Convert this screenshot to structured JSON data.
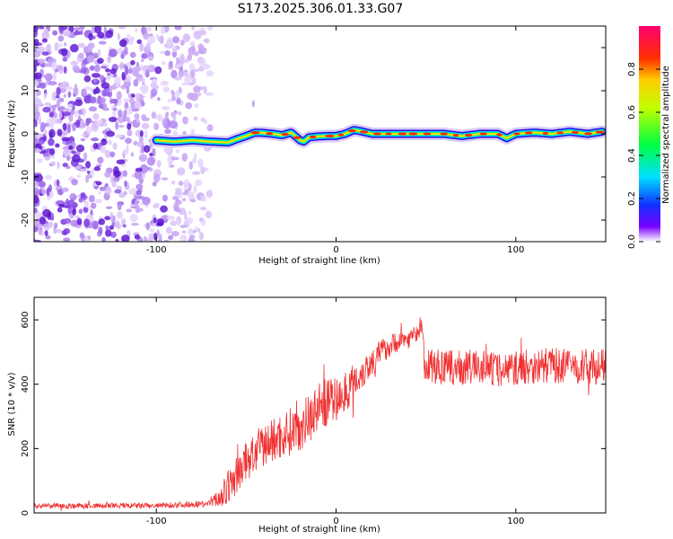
{
  "title": "S173.2025.306.01.33.G07",
  "chart_data": [
    {
      "type": "heatmap",
      "name": "spectrogram",
      "xlabel": "Height of straight line (km)",
      "ylabel": "Frequency (Hz)",
      "xlim": [
        -168,
        150
      ],
      "ylim": [
        -25,
        25
      ],
      "xticks": [
        -100,
        0,
        100
      ],
      "yticks": [
        -20,
        -10,
        0,
        10,
        20
      ],
      "xtick_labels": [
        "-100",
        "0",
        "100"
      ],
      "ytick_labels": [
        "-20",
        "-10",
        "0",
        "10",
        "20"
      ],
      "ridge": {
        "x": [
          -100,
          -90,
          -80,
          -70,
          -60,
          -55,
          -50,
          -45,
          -40,
          -35,
          -30,
          -25,
          -20,
          -18,
          -15,
          -10,
          -5,
          0,
          5,
          10,
          15,
          20,
          30,
          40,
          50,
          60,
          70,
          80,
          90,
          95,
          100,
          110,
          120,
          130,
          140,
          148
        ],
        "y": [
          -1.5,
          -1.8,
          -1.5,
          -1.8,
          -2.0,
          -1.2,
          -0.5,
          0.3,
          0.2,
          0.0,
          -0.3,
          0.3,
          -1.5,
          -1.8,
          -0.8,
          -0.6,
          -0.5,
          -0.5,
          0.0,
          0.9,
          0.5,
          0.0,
          0.0,
          0.0,
          0.0,
          0.0,
          -0.5,
          0.0,
          0.0,
          -1.0,
          0.0,
          0.3,
          0.0,
          0.5,
          0.0,
          0.5
        ]
      },
      "noise_region": [
        -168,
        -70
      ],
      "colorbar": {
        "label": "Normalized spectral amplitude",
        "range": [
          0,
          1
        ],
        "ticks": [
          0.0,
          0.2,
          0.4,
          0.6,
          0.8
        ],
        "tick_labels": [
          "0.0",
          "0.2",
          "0.4",
          "0.6",
          "0.8"
        ]
      }
    },
    {
      "type": "line",
      "name": "snr",
      "xlabel": "Height of straight line (km)",
      "ylabel": "SNR (10 * v/v)",
      "xlim": [
        -168,
        150
      ],
      "ylim": [
        0,
        670
      ],
      "xticks": [
        -100,
        0,
        100
      ],
      "yticks": [
        0,
        200,
        400,
        600
      ],
      "xtick_labels": [
        "-100",
        "0",
        "100"
      ],
      "ytick_labels": [
        "0",
        "200",
        "400",
        "600"
      ],
      "color": "#f03030",
      "envelope": {
        "x": [
          -168,
          -100,
          -70,
          -62,
          -55,
          -50,
          -45,
          -40,
          -35,
          -30,
          -25,
          -20,
          -15,
          -10,
          -5,
          0,
          5,
          10,
          15,
          20,
          25,
          30,
          35,
          40,
          45,
          48,
          49,
          55,
          60,
          70,
          80,
          90,
          100,
          110,
          120,
          130,
          140,
          150
        ],
        "y": [
          22,
          22,
          30,
          60,
          120,
          160,
          185,
          210,
          225,
          240,
          255,
          270,
          295,
          330,
          345,
          350,
          375,
          410,
          440,
          470,
          500,
          520,
          535,
          540,
          560,
          580,
          460,
          455,
          450,
          450,
          455,
          445,
          450,
          455,
          460,
          455,
          455,
          455
        ]
      },
      "noise_amplitude": {
        "x": [
          -168,
          -70,
          -60,
          -40,
          -10,
          10,
          30,
          48,
          49,
          150
        ],
        "y": [
          8,
          10,
          55,
          70,
          80,
          60,
          35,
          25,
          55,
          55
        ]
      }
    }
  ]
}
